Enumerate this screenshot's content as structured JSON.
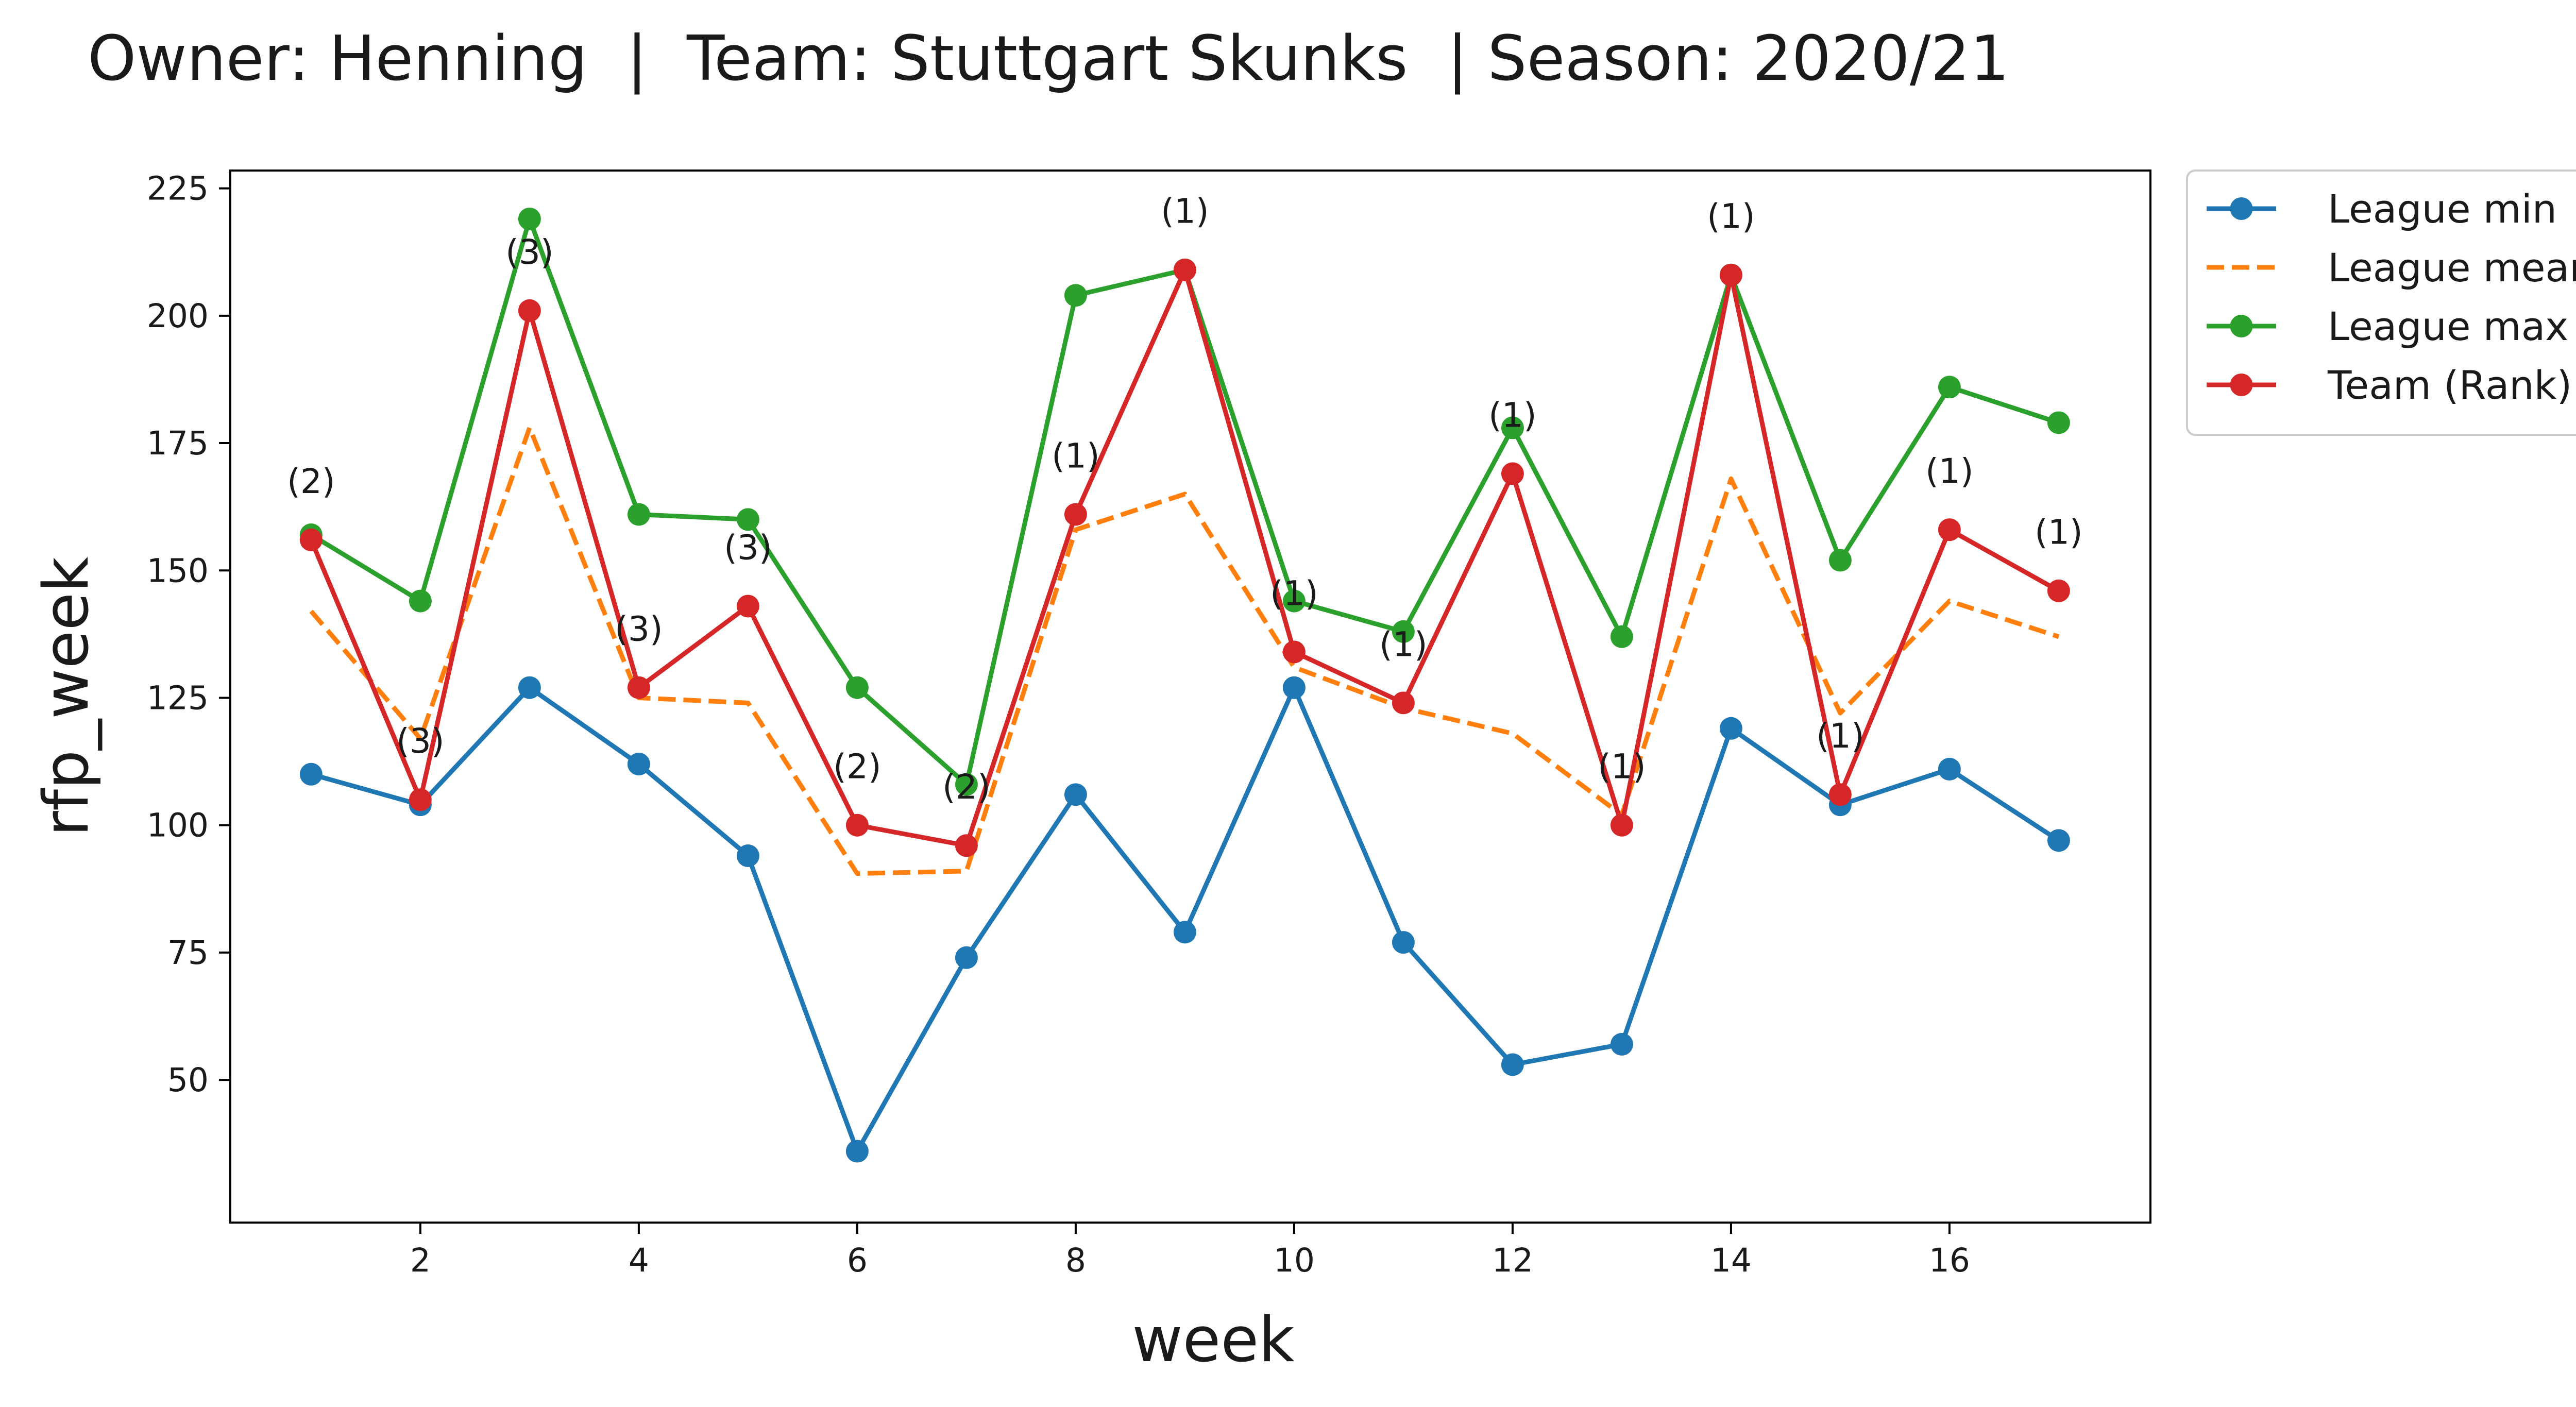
{
  "chart_data": {
    "type": "line",
    "title": "Owner: Henning  |  Team: Stuttgart Skunks  | Season: 2020/21",
    "xlabel": "week",
    "ylabel": "rfp_week",
    "x": [
      1,
      2,
      3,
      4,
      5,
      6,
      7,
      8,
      9,
      10,
      11,
      12,
      13,
      14,
      15,
      16,
      17
    ],
    "xlim": [
      0.26,
      17.84
    ],
    "ylim": [
      22,
      228.5
    ],
    "xticks": [
      2,
      4,
      6,
      8,
      10,
      12,
      14,
      16
    ],
    "xtick_labels": [
      "2",
      "4",
      "6",
      "8",
      "10",
      "12",
      "14",
      "16"
    ],
    "yticks": [
      50,
      75,
      100,
      125,
      150,
      175,
      200,
      225
    ],
    "ytick_labels": [
      "50",
      "75",
      "100",
      "125",
      "150",
      "175",
      "200",
      "225"
    ],
    "grid": false,
    "legend_position": "outside-top-right",
    "series": [
      {
        "name": "League min",
        "color": "#1f77b4",
        "style": "solid",
        "marker": "circle",
        "values": [
          110,
          104,
          127,
          112,
          94,
          36,
          74,
          106,
          79,
          127,
          77,
          53,
          57,
          119,
          104,
          111,
          97
        ]
      },
      {
        "name": "League mean",
        "color": "#ff7f0e",
        "style": "dashed",
        "marker": "none",
        "values": [
          142,
          117,
          178,
          125,
          124,
          90.5,
          91,
          158,
          165,
          131,
          123,
          118,
          102,
          168,
          122,
          144,
          137
        ]
      },
      {
        "name": "League max",
        "color": "#2ca02c",
        "style": "solid",
        "marker": "circle",
        "values": [
          157,
          144,
          219,
          161,
          160,
          127,
          108,
          204,
          209,
          144,
          138,
          178,
          137,
          208,
          152,
          186,
          179
        ]
      },
      {
        "name": "Team (Rank)",
        "color": "#d62728",
        "style": "solid",
        "marker": "circle",
        "values": [
          156,
          105,
          201,
          127,
          143,
          100,
          96,
          161,
          209,
          134,
          124,
          169,
          100,
          208,
          106,
          158,
          146
        ]
      }
    ],
    "annotations": [
      "(2)",
      "(3)",
      "(3)",
      "(3)",
      "(3)",
      "(2)",
      "(2)",
      "(1)",
      "(1)",
      "(1)",
      "(1)",
      "(1)",
      "(1)",
      "(1)",
      "(1)",
      "(1)",
      "(1)"
    ]
  }
}
